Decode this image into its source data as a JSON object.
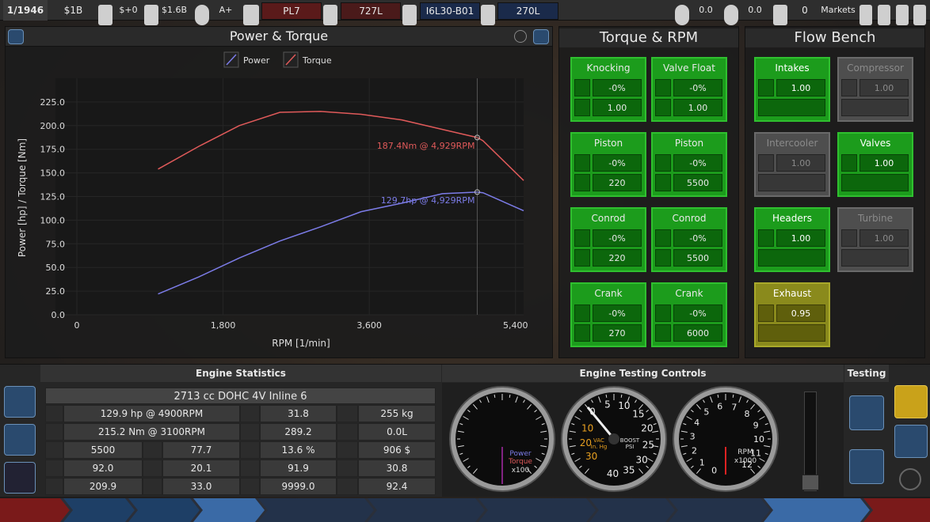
{
  "top_bar": {
    "date": "1/1946",
    "money": "$1B",
    "income": "$+0",
    "loan": "$1.6B",
    "rating": "A+",
    "car": "PL7",
    "car_volume": "727L",
    "engine": "I6L30-B01",
    "engine_volume": "270L",
    "score_1": "0.0",
    "score_2": "0.0",
    "trophies": "0",
    "markets": "Markets"
  },
  "chart_data": {
    "type": "line",
    "title": "Power & Torque",
    "x_label": "RPM [1/min]",
    "y_label": "Power [hp] / Torque [Nm]",
    "x": [
      1000,
      1500,
      2000,
      2500,
      3000,
      3500,
      4000,
      4500,
      4929,
      5000,
      5500
    ],
    "series": [
      {
        "name": "Power",
        "color": "#7c7ce8",
        "values": [
          22,
          40,
          60,
          78,
          93,
          109,
          118,
          128,
          129.7,
          129,
          110
        ]
      },
      {
        "name": "Torque",
        "color": "#e05a5a",
        "values": [
          154,
          178,
          200,
          214,
          215,
          212,
          206,
          196,
          187.4,
          184,
          142
        ]
      }
    ],
    "annotations": [
      {
        "text": "187.4Nm @ 4,929RPM",
        "x": 4929,
        "y": 187.4,
        "color": "#e05a5a"
      },
      {
        "text": "129.7hp @ 4,929RPM",
        "x": 4929,
        "y": 129.7,
        "color": "#7c7ce8"
      }
    ],
    "xlim": [
      0,
      5500
    ],
    "ylim": [
      0,
      250
    ],
    "xticks": [
      0,
      {
        "value": 1800,
        "label": "1,800"
      },
      {
        "value": 3600,
        "label": "3,600"
      },
      {
        "value": 5400,
        "label": "5,400"
      }
    ],
    "yticks": [
      {
        "value": 0,
        "label": "0.0"
      },
      {
        "value": 25,
        "label": "25.0"
      },
      {
        "value": 50,
        "label": "50.0"
      },
      {
        "value": 75,
        "label": "75.0"
      },
      {
        "value": 100,
        "label": "100.0"
      },
      {
        "value": 125,
        "label": "125.0"
      },
      {
        "value": 150,
        "label": "150.0"
      },
      {
        "value": 175,
        "label": "175.0"
      },
      {
        "value": 200,
        "label": "200.0"
      },
      {
        "value": 225,
        "label": "225.0"
      }
    ],
    "grid": true,
    "legend": "top"
  },
  "torque_rpm": {
    "title": "Torque & RPM",
    "cards": [
      {
        "title": "Knocking",
        "values": [
          "-0%",
          "1.00"
        ]
      },
      {
        "title": "Valve Float",
        "values": [
          "-0%",
          "1.00"
        ]
      },
      {
        "title": "Piston",
        "values": [
          "-0%",
          "220"
        ]
      },
      {
        "title": "Piston",
        "values": [
          "-0%",
          "5500"
        ]
      },
      {
        "title": "Conrod",
        "values": [
          "-0%",
          "220"
        ]
      },
      {
        "title": "Conrod",
        "values": [
          "-0%",
          "5500"
        ]
      },
      {
        "title": "Crank",
        "values": [
          "-0%",
          "270"
        ]
      },
      {
        "title": "Crank",
        "values": [
          "-0%",
          "6000"
        ]
      }
    ]
  },
  "flow_bench": {
    "title": "Flow Bench",
    "cards": [
      {
        "title": "Intakes",
        "value": "1.00",
        "state": "active"
      },
      {
        "title": "Compressor",
        "value": "1.00",
        "state": "disabled"
      },
      {
        "title": "Intercooler",
        "value": "1.00",
        "state": "disabled"
      },
      {
        "title": "Valves",
        "value": "1.00",
        "state": "active"
      },
      {
        "title": "Headers",
        "value": "1.00",
        "state": "active"
      },
      {
        "title": "Turbine",
        "value": "1.00",
        "state": "disabled"
      },
      {
        "title": "Exhaust",
        "value": "0.95",
        "state": "warning"
      }
    ]
  },
  "engine_statistics": {
    "title": "Engine Statistics",
    "summary": "2713 cc DOHC 4V  Inline 6",
    "rows": [
      [
        "129.9 hp @ 4900RPM",
        "31.8",
        "255 kg"
      ],
      [
        "215.2 Nm @ 3100RPM",
        "289.2",
        "0.0L"
      ],
      [
        "5500",
        "77.7",
        "13.6 %",
        "906 $"
      ],
      [
        "92.0",
        "20.1",
        "91.9",
        "30.8"
      ],
      [
        "209.9",
        "33.0",
        "9999.0",
        "92.4"
      ]
    ]
  },
  "testing_controls": {
    "title": "Engine Testing Controls",
    "power_gauge": {
      "power": "Power",
      "torque": "Torque",
      "scale": "x100"
    },
    "boost_gauge": {
      "outer_ticks": [
        0,
        5,
        10,
        15,
        20,
        25,
        30,
        35,
        40
      ],
      "inner_ticks": [
        10,
        20,
        30
      ],
      "vac": "VAC",
      "vac_unit": "In. Hg",
      "boost": "BOOST",
      "boost_unit": "PSI"
    },
    "rpm_gauge": {
      "ticks": [
        0,
        1,
        2,
        3,
        4,
        5,
        6,
        7,
        8,
        9,
        10,
        11,
        12
      ],
      "label": "RPM",
      "scale": "x1000"
    }
  },
  "testing": {
    "title": "Testing"
  }
}
